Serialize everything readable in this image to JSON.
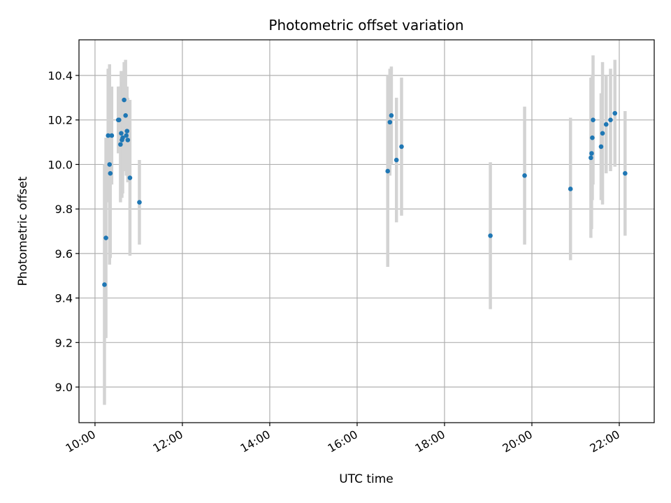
{
  "chart_data": {
    "type": "scatter",
    "title": "Photometric offset variation",
    "xlabel": "UTC time",
    "ylabel": "Photometric offset",
    "xlim": [
      "09:38",
      "22:48"
    ],
    "ylim": [
      8.84,
      10.56
    ],
    "x_ticks": [
      "10:00",
      "12:00",
      "14:00",
      "16:00",
      "18:00",
      "20:00",
      "22:00"
    ],
    "y_ticks": [
      "9.0",
      "9.2",
      "9.4",
      "9.6",
      "9.8",
      "10.0",
      "10.2",
      "10.4"
    ],
    "grid": true,
    "marker_color": "#1f77b4",
    "errorbar_color": "#d3d3d3",
    "series": [
      {
        "points": [
          {
            "x": "10:13",
            "y": 9.46,
            "err": 0.54
          },
          {
            "x": "10:15",
            "y": 9.67,
            "err": 0.45
          },
          {
            "x": "10:18",
            "y": 10.13,
            "err": 0.3
          },
          {
            "x": "10:20",
            "y": 10.0,
            "err": 0.45
          },
          {
            "x": "10:21",
            "y": 9.96,
            "err": 0.38
          },
          {
            "x": "10:23",
            "y": 10.13,
            "err": 0.22
          },
          {
            "x": "10:32",
            "y": 10.2,
            "err": 0.15
          },
          {
            "x": "10:33",
            "y": 10.2,
            "err": 0.15
          },
          {
            "x": "10:35",
            "y": 10.09,
            "err": 0.26
          },
          {
            "x": "10:36",
            "y": 10.14,
            "err": 0.28
          },
          {
            "x": "10:37",
            "y": 10.11,
            "err": 0.26
          },
          {
            "x": "10:38",
            "y": 10.12,
            "err": 0.25
          },
          {
            "x": "10:40",
            "y": 10.29,
            "err": 0.17
          },
          {
            "x": "10:42",
            "y": 10.22,
            "err": 0.25
          },
          {
            "x": "10:43",
            "y": 10.13,
            "err": 0.18
          },
          {
            "x": "10:44",
            "y": 10.15,
            "err": 0.2
          },
          {
            "x": "10:45",
            "y": 10.11,
            "err": 0.19
          },
          {
            "x": "10:48",
            "y": 9.94,
            "err": 0.35
          },
          {
            "x": "11:01",
            "y": 9.83,
            "err": 0.19
          },
          {
            "x": "16:42",
            "y": 9.97,
            "err": 0.43
          },
          {
            "x": "16:45",
            "y": 10.19,
            "err": 0.24
          },
          {
            "x": "16:47",
            "y": 10.22,
            "err": 0.22
          },
          {
            "x": "16:54",
            "y": 10.02,
            "err": 0.28
          },
          {
            "x": "17:01",
            "y": 10.08,
            "err": 0.31
          },
          {
            "x": "19:03",
            "y": 9.68,
            "err": 0.33
          },
          {
            "x": "19:50",
            "y": 9.95,
            "err": 0.31
          },
          {
            "x": "20:53",
            "y": 9.89,
            "err": 0.32
          },
          {
            "x": "21:21",
            "y": 10.03,
            "err": 0.36
          },
          {
            "x": "21:22",
            "y": 10.05,
            "err": 0.34
          },
          {
            "x": "21:23",
            "y": 10.12,
            "err": 0.28
          },
          {
            "x": "21:24",
            "y": 10.2,
            "err": 0.29
          },
          {
            "x": "21:35",
            "y": 10.08,
            "err": 0.24
          },
          {
            "x": "21:37",
            "y": 10.14,
            "err": 0.32
          },
          {
            "x": "21:42",
            "y": 10.18,
            "err": 0.22
          },
          {
            "x": "21:48",
            "y": 10.2,
            "err": 0.23
          },
          {
            "x": "21:54",
            "y": 10.23,
            "err": 0.24
          },
          {
            "x": "22:08",
            "y": 9.96,
            "err": 0.28
          }
        ]
      }
    ]
  }
}
